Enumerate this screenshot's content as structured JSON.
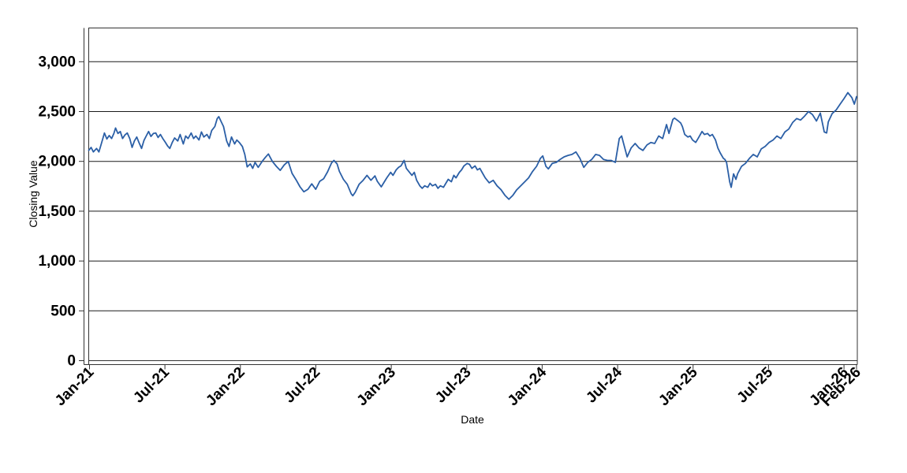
{
  "chart_data": {
    "type": "line",
    "title": "",
    "xlabel": "Date",
    "ylabel": "Closing Value",
    "legend": "none",
    "grid": "horizontal-only",
    "background_color": "#ffffff",
    "line_color": "#2B5FA6",
    "axis_color": "#333333",
    "grid_color": "#1a1a1a",
    "text_color": "#000000",
    "x_unit": "months since Jan-2021",
    "xlim": [
      -0.06,
      61.06
    ],
    "ylim": [
      0,
      3339
    ],
    "x_ticks": [
      {
        "m": 0,
        "label": "Jan-21"
      },
      {
        "m": 6,
        "label": "Jul-21"
      },
      {
        "m": 12,
        "label": "Jan-22"
      },
      {
        "m": 18,
        "label": "Jul-22"
      },
      {
        "m": 24,
        "label": "Jan-23"
      },
      {
        "m": 30,
        "label": "Jul-23"
      },
      {
        "m": 36,
        "label": "Jan-24"
      },
      {
        "m": 42,
        "label": "Jul-24"
      },
      {
        "m": 48,
        "label": "Jan-25"
      },
      {
        "m": 54,
        "label": "Jul-25"
      },
      {
        "m": 60,
        "label": "Jan-26"
      },
      {
        "m": 61,
        "label": "Feb-26"
      }
    ],
    "y_ticks": [
      {
        "v": 0,
        "label": "0"
      },
      {
        "v": 500,
        "label": "500"
      },
      {
        "v": 1000,
        "label": "1,000"
      },
      {
        "v": 1500,
        "label": "1,500"
      },
      {
        "v": 2000,
        "label": "2,000"
      },
      {
        "v": 2500,
        "label": "2,500"
      },
      {
        "v": 3000,
        "label": "3,000"
      }
    ],
    "series": [
      {
        "name": "Closing Value",
        "points": [
          [
            -0.06,
            2110
          ],
          [
            0.13,
            2140
          ],
          [
            0.31,
            2095
          ],
          [
            0.56,
            2130
          ],
          [
            0.75,
            2095
          ],
          [
            0.94,
            2175
          ],
          [
            1.19,
            2285
          ],
          [
            1.38,
            2225
          ],
          [
            1.57,
            2260
          ],
          [
            1.76,
            2230
          ],
          [
            1.94,
            2280
          ],
          [
            2.07,
            2335
          ],
          [
            2.26,
            2280
          ],
          [
            2.45,
            2300
          ],
          [
            2.63,
            2230
          ],
          [
            2.82,
            2265
          ],
          [
            3.01,
            2285
          ],
          [
            3.2,
            2230
          ],
          [
            3.39,
            2140
          ],
          [
            3.57,
            2205
          ],
          [
            3.76,
            2245
          ],
          [
            3.95,
            2185
          ],
          [
            4.14,
            2130
          ],
          [
            4.33,
            2210
          ],
          [
            4.51,
            2255
          ],
          [
            4.7,
            2300
          ],
          [
            4.89,
            2250
          ],
          [
            5.08,
            2280
          ],
          [
            5.27,
            2285
          ],
          [
            5.45,
            2240
          ],
          [
            5.64,
            2270
          ],
          [
            5.83,
            2230
          ],
          [
            6.02,
            2195
          ],
          [
            6.21,
            2155
          ],
          [
            6.39,
            2130
          ],
          [
            6.58,
            2190
          ],
          [
            6.77,
            2235
          ],
          [
            7.02,
            2205
          ],
          [
            7.21,
            2270
          ],
          [
            7.46,
            2175
          ],
          [
            7.65,
            2255
          ],
          [
            7.84,
            2230
          ],
          [
            8.09,
            2285
          ],
          [
            8.28,
            2230
          ],
          [
            8.46,
            2255
          ],
          [
            8.71,
            2215
          ],
          [
            8.9,
            2295
          ],
          [
            9.09,
            2245
          ],
          [
            9.34,
            2270
          ],
          [
            9.53,
            2230
          ],
          [
            9.72,
            2310
          ],
          [
            9.97,
            2350
          ],
          [
            10.16,
            2430
          ],
          [
            10.28,
            2450
          ],
          [
            10.47,
            2400
          ],
          [
            10.66,
            2350
          ],
          [
            10.91,
            2205
          ],
          [
            11.1,
            2150
          ],
          [
            11.29,
            2245
          ],
          [
            11.54,
            2175
          ],
          [
            11.72,
            2215
          ],
          [
            11.91,
            2190
          ],
          [
            12.16,
            2150
          ],
          [
            12.35,
            2070
          ],
          [
            12.54,
            1945
          ],
          [
            12.79,
            1975
          ],
          [
            12.98,
            1930
          ],
          [
            13.17,
            1990
          ],
          [
            13.42,
            1940
          ],
          [
            13.73,
            2000
          ],
          [
            13.98,
            2040
          ],
          [
            14.23,
            2075
          ],
          [
            14.54,
            2000
          ],
          [
            14.86,
            1950
          ],
          [
            15.17,
            1910
          ],
          [
            15.49,
            1965
          ],
          [
            15.8,
            2000
          ],
          [
            16.11,
            1880
          ],
          [
            16.43,
            1815
          ],
          [
            16.74,
            1745
          ],
          [
            17.05,
            1695
          ],
          [
            17.37,
            1720
          ],
          [
            17.68,
            1775
          ],
          [
            17.99,
            1720
          ],
          [
            18.31,
            1800
          ],
          [
            18.62,
            1825
          ],
          [
            18.93,
            1895
          ],
          [
            19.25,
            1985
          ],
          [
            19.44,
            2010
          ],
          [
            19.69,
            1975
          ],
          [
            19.87,
            1900
          ],
          [
            20.19,
            1820
          ],
          [
            20.5,
            1770
          ],
          [
            20.81,
            1675
          ],
          [
            20.94,
            1655
          ],
          [
            21.13,
            1690
          ],
          [
            21.44,
            1770
          ],
          [
            21.76,
            1810
          ],
          [
            22.07,
            1860
          ],
          [
            22.38,
            1810
          ],
          [
            22.7,
            1855
          ],
          [
            22.89,
            1800
          ],
          [
            23.2,
            1745
          ],
          [
            23.64,
            1835
          ],
          [
            23.95,
            1890
          ],
          [
            24.14,
            1860
          ],
          [
            24.39,
            1915
          ],
          [
            24.58,
            1940
          ],
          [
            24.77,
            1955
          ],
          [
            25.02,
            2010
          ],
          [
            25.2,
            1930
          ],
          [
            25.39,
            1900
          ],
          [
            25.64,
            1860
          ],
          [
            25.83,
            1890
          ],
          [
            26.02,
            1810
          ],
          [
            26.27,
            1755
          ],
          [
            26.46,
            1730
          ],
          [
            26.65,
            1755
          ],
          [
            26.9,
            1740
          ],
          [
            27.08,
            1780
          ],
          [
            27.27,
            1755
          ],
          [
            27.52,
            1770
          ],
          [
            27.71,
            1730
          ],
          [
            27.9,
            1755
          ],
          [
            28.15,
            1740
          ],
          [
            28.34,
            1780
          ],
          [
            28.53,
            1820
          ],
          [
            28.78,
            1795
          ],
          [
            28.97,
            1860
          ],
          [
            29.15,
            1835
          ],
          [
            29.41,
            1890
          ],
          [
            29.59,
            1915
          ],
          [
            29.78,
            1955
          ],
          [
            30.03,
            1980
          ],
          [
            30.22,
            1970
          ],
          [
            30.41,
            1930
          ],
          [
            30.66,
            1955
          ],
          [
            30.85,
            1915
          ],
          [
            31.04,
            1930
          ],
          [
            31.29,
            1875
          ],
          [
            31.47,
            1835
          ],
          [
            31.79,
            1785
          ],
          [
            32.1,
            1810
          ],
          [
            32.41,
            1755
          ],
          [
            32.73,
            1715
          ],
          [
            33.04,
            1660
          ],
          [
            33.35,
            1620
          ],
          [
            33.67,
            1660
          ],
          [
            33.98,
            1715
          ],
          [
            34.29,
            1755
          ],
          [
            34.61,
            1795
          ],
          [
            34.92,
            1835
          ],
          [
            35.24,
            1900
          ],
          [
            35.55,
            1950
          ],
          [
            35.86,
            2030
          ],
          [
            36.05,
            2055
          ],
          [
            36.3,
            1950
          ],
          [
            36.49,
            1925
          ],
          [
            36.8,
            1980
          ],
          [
            37.12,
            1990
          ],
          [
            37.43,
            2020
          ],
          [
            37.74,
            2045
          ],
          [
            38.06,
            2060
          ],
          [
            38.37,
            2070
          ],
          [
            38.68,
            2095
          ],
          [
            39,
            2030
          ],
          [
            39.31,
            1940
          ],
          [
            39.62,
            1990
          ],
          [
            39.94,
            2020
          ],
          [
            40.25,
            2070
          ],
          [
            40.56,
            2060
          ],
          [
            40.88,
            2020
          ],
          [
            41.19,
            2010
          ],
          [
            41.5,
            2010
          ],
          [
            41.82,
            1990
          ],
          [
            42.13,
            2230
          ],
          [
            42.32,
            2255
          ],
          [
            42.45,
            2190
          ],
          [
            42.76,
            2045
          ],
          [
            43.07,
            2135
          ],
          [
            43.39,
            2180
          ],
          [
            43.7,
            2135
          ],
          [
            44.01,
            2110
          ],
          [
            44.33,
            2165
          ],
          [
            44.64,
            2190
          ],
          [
            44.95,
            2180
          ],
          [
            45.27,
            2255
          ],
          [
            45.58,
            2230
          ],
          [
            45.89,
            2370
          ],
          [
            46.08,
            2280
          ],
          [
            46.39,
            2420
          ],
          [
            46.52,
            2435
          ],
          [
            46.83,
            2405
          ],
          [
            47.02,
            2385
          ],
          [
            47.15,
            2350
          ],
          [
            47.34,
            2270
          ],
          [
            47.59,
            2245
          ],
          [
            47.77,
            2255
          ],
          [
            47.96,
            2215
          ],
          [
            48.21,
            2190
          ],
          [
            48.4,
            2230
          ],
          [
            48.71,
            2300
          ],
          [
            48.9,
            2270
          ],
          [
            49.15,
            2280
          ],
          [
            49.34,
            2255
          ],
          [
            49.53,
            2270
          ],
          [
            49.78,
            2215
          ],
          [
            49.97,
            2135
          ],
          [
            50.16,
            2085
          ],
          [
            50.41,
            2030
          ],
          [
            50.53,
            2020
          ],
          [
            50.66,
            1990
          ],
          [
            50.91,
            1795
          ],
          [
            51.03,
            1740
          ],
          [
            51.22,
            1875
          ],
          [
            51.41,
            1820
          ],
          [
            51.54,
            1875
          ],
          [
            51.85,
            1950
          ],
          [
            52.16,
            1980
          ],
          [
            52.48,
            2030
          ],
          [
            52.79,
            2070
          ],
          [
            53.1,
            2045
          ],
          [
            53.42,
            2125
          ],
          [
            53.73,
            2150
          ],
          [
            54.04,
            2190
          ],
          [
            54.36,
            2215
          ],
          [
            54.67,
            2255
          ],
          [
            54.98,
            2230
          ],
          [
            55.3,
            2295
          ],
          [
            55.61,
            2325
          ],
          [
            55.92,
            2390
          ],
          [
            56.24,
            2430
          ],
          [
            56.55,
            2415
          ],
          [
            56.87,
            2455
          ],
          [
            57.18,
            2500
          ],
          [
            57.49,
            2470
          ],
          [
            57.81,
            2405
          ],
          [
            58.12,
            2485
          ],
          [
            58.43,
            2295
          ],
          [
            58.62,
            2285
          ],
          [
            58.75,
            2397
          ],
          [
            59.06,
            2480
          ],
          [
            59.37,
            2515
          ],
          [
            59.69,
            2575
          ],
          [
            60,
            2630
          ],
          [
            60.31,
            2690
          ],
          [
            60.63,
            2640
          ],
          [
            60.82,
            2575
          ],
          [
            61,
            2650
          ]
        ]
      }
    ]
  }
}
